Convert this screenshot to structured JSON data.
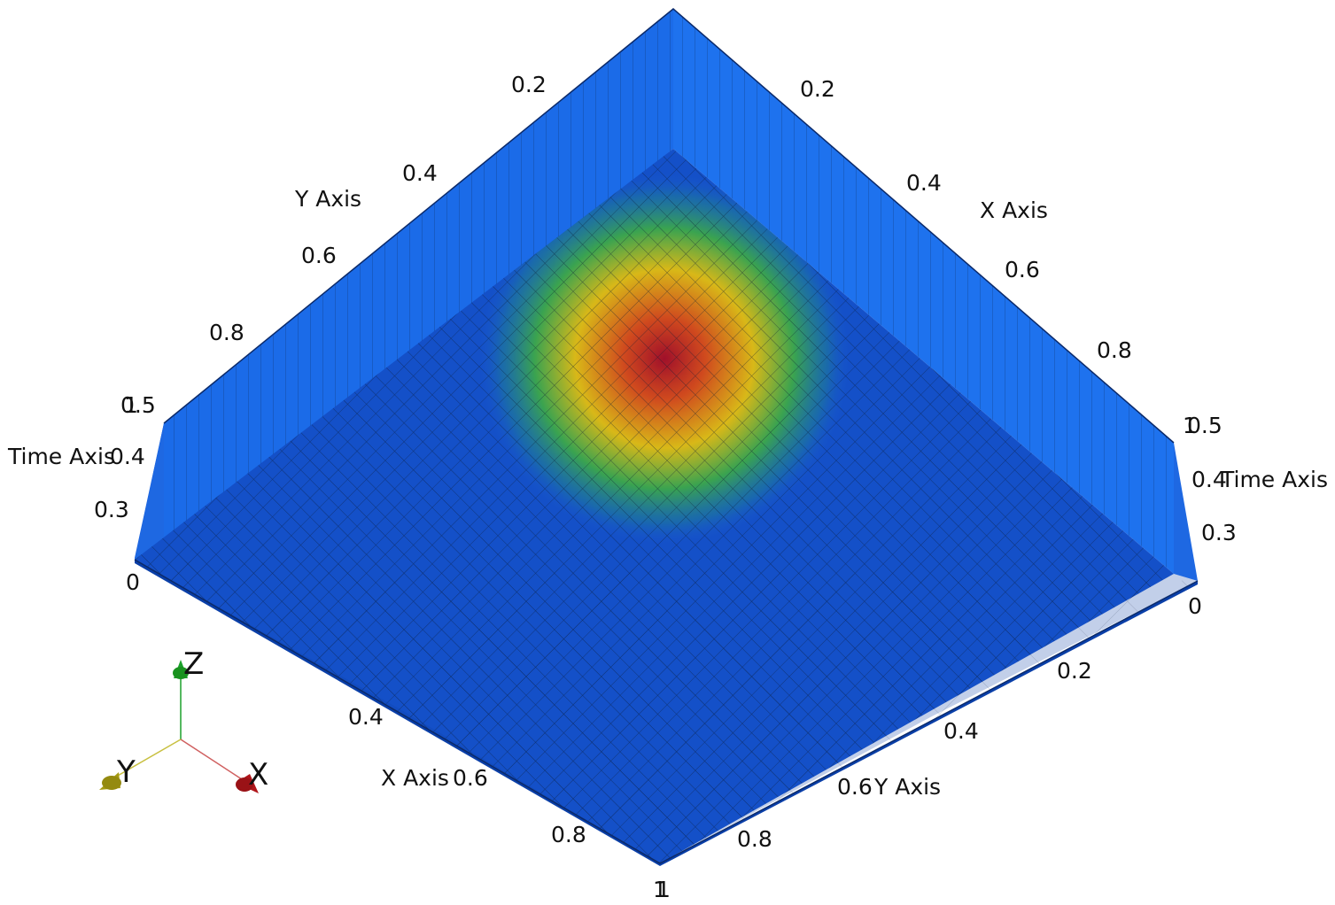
{
  "viewport": {
    "background": "#ffffff",
    "colors": {
      "low": "#1a58d6",
      "mid": "#2ea85a",
      "high": "#e0c21e",
      "peak": "#a0102a",
      "top_face": "#1b6be8",
      "bottom_face": "#0a3fa8",
      "mesh_line": "#0b1b33"
    }
  },
  "axes_labels": {
    "top_left_title": "Y Axis",
    "top_right_title": "X Axis",
    "side_left_title": "Time Axis",
    "side_right_title": "Time Axis",
    "bottom_left_title": "X Axis",
    "bottom_right_title": "Y Axis"
  },
  "ticks": {
    "top_left": [
      "0.2",
      "0.4",
      "0.6",
      "0.8",
      "1"
    ],
    "top_right": [
      "0.2",
      "0.4",
      "0.6",
      "0.8",
      "1"
    ],
    "side_left": [
      "0.5",
      "0.4",
      "0.3",
      "0"
    ],
    "side_right": [
      "0.5",
      "0.4",
      "0.3",
      "0"
    ],
    "bottom_left": [
      "0.4",
      "0.6",
      "0.8"
    ],
    "bottom_right": [
      "0.2",
      "0.4",
      "0.6",
      "0.8"
    ],
    "bottom_corner": [
      "1",
      "1"
    ]
  },
  "orientation_triad": {
    "x_label": "X",
    "y_label": "Y",
    "z_label": "Z",
    "x_color": "#b0151a",
    "y_color": "#a69a12",
    "z_color": "#1aa12a"
  }
}
